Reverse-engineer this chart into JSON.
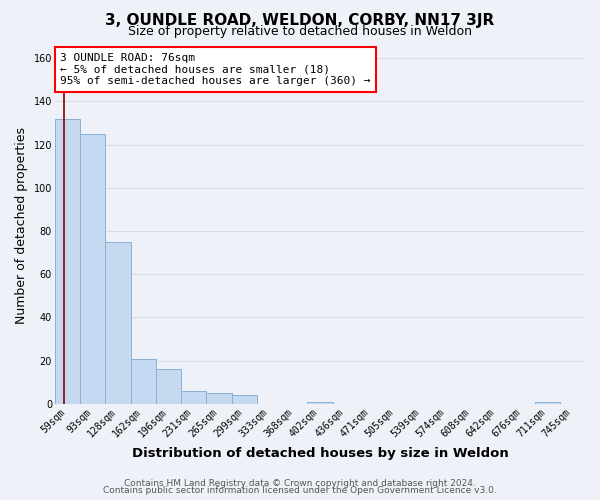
{
  "title": "3, OUNDLE ROAD, WELDON, CORBY, NN17 3JR",
  "subtitle": "Size of property relative to detached houses in Weldon",
  "xlabel": "Distribution of detached houses by size in Weldon",
  "ylabel": "Number of detached properties",
  "bar_labels": [
    "59sqm",
    "93sqm",
    "128sqm",
    "162sqm",
    "196sqm",
    "231sqm",
    "265sqm",
    "299sqm",
    "333sqm",
    "368sqm",
    "402sqm",
    "436sqm",
    "471sqm",
    "505sqm",
    "539sqm",
    "574sqm",
    "608sqm",
    "642sqm",
    "676sqm",
    "711sqm",
    "745sqm"
  ],
  "bar_values": [
    132,
    125,
    75,
    21,
    16,
    6,
    5,
    4,
    0,
    0,
    1,
    0,
    0,
    0,
    0,
    0,
    0,
    0,
    0,
    1,
    0
  ],
  "bar_color": "#c5d9f0",
  "bar_edge_color": "#8ab0d4",
  "annotation_box_text": "3 OUNDLE ROAD: 76sqm\n← 5% of detached houses are smaller (18)\n95% of semi-detached houses are larger (360) →",
  "red_line_x": -0.15,
  "ylim": [
    0,
    165
  ],
  "yticks": [
    0,
    20,
    40,
    60,
    80,
    100,
    120,
    140,
    160
  ],
  "footer_line1": "Contains HM Land Registry data © Crown copyright and database right 2024.",
  "footer_line2": "Contains public sector information licensed under the Open Government Licence v3.0.",
  "background_color": "#eef2f8",
  "grid_color": "#d8dce8",
  "title_fontsize": 11,
  "subtitle_fontsize": 9,
  "axis_label_fontsize": 9,
  "tick_fontsize": 7,
  "footer_fontsize": 6.5
}
